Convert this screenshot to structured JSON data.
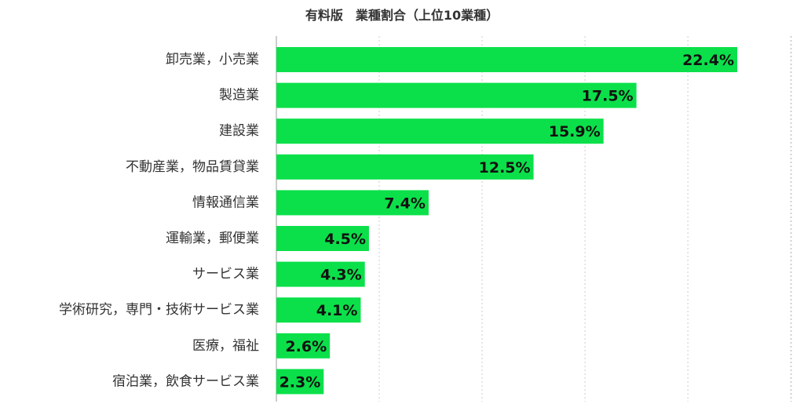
{
  "chart_data": {
    "type": "bar",
    "orientation": "horizontal",
    "title": "有料版　業種割合（上位10業種）",
    "xlabel": "",
    "ylabel": "",
    "categories": [
      "卸売業，小売業",
      "製造業",
      "建設業",
      "不動産業，物品賃貸業",
      "情報通信業",
      "運輸業，郵便業",
      "サービス業",
      "学術研究，専門・技術サービス業",
      "医療，福祉",
      "宿泊業，飲食サービス業"
    ],
    "values": [
      22.4,
      17.5,
      15.9,
      12.5,
      7.4,
      4.5,
      4.3,
      4.1,
      2.6,
      2.3
    ],
    "value_labels": [
      "22.4%",
      "17.5%",
      "15.9%",
      "12.5%",
      "7.4%",
      "4.5%",
      "4.3%",
      "4.1%",
      "2.6%",
      "2.3%"
    ],
    "xlim": [
      0,
      25
    ],
    "grid": true,
    "legend": "none",
    "bar_color": "#0be04a"
  }
}
